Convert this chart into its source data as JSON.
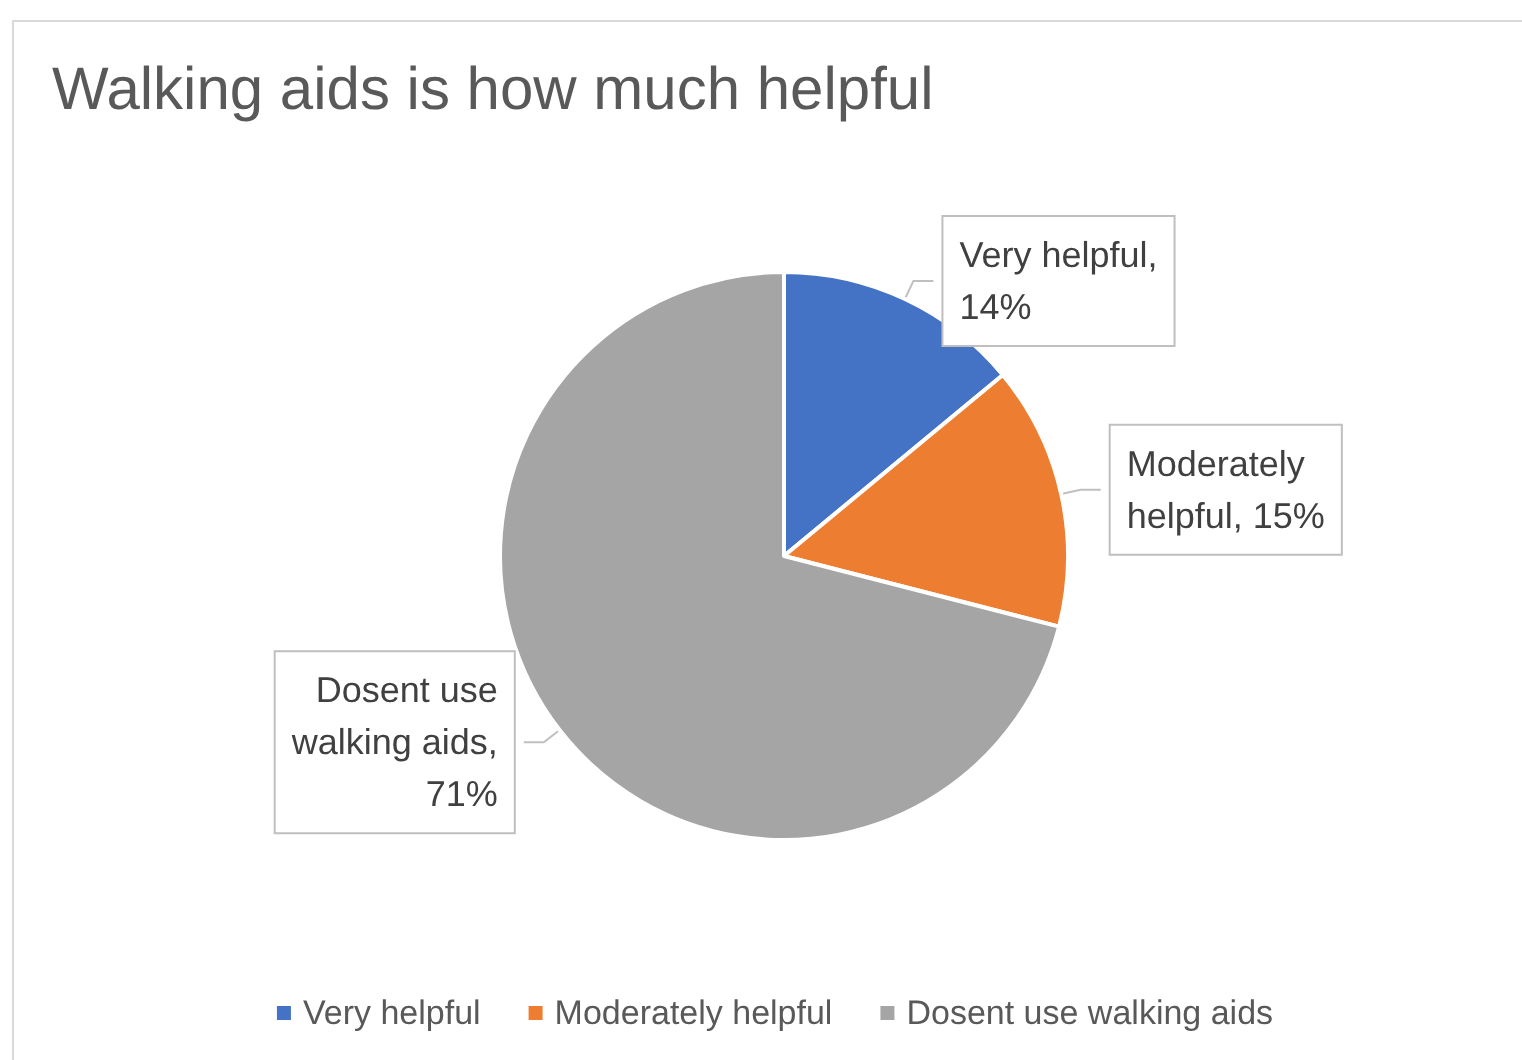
{
  "chart_data": {
    "type": "pie",
    "title": "Walking aids is how much helpful",
    "categories": [
      "Very helpful",
      "Moderately helpful",
      "Dosent use walking aids"
    ],
    "values": [
      14,
      15,
      71
    ],
    "value_labels": [
      "Very helpful,\n14%",
      "Moderately\nhelpful, 15%",
      "Dosent use\nwalking aids,\n71%"
    ],
    "colors": [
      "#4472c4",
      "#ed7d31",
      "#a5a5a5"
    ],
    "legend": "bottom"
  }
}
